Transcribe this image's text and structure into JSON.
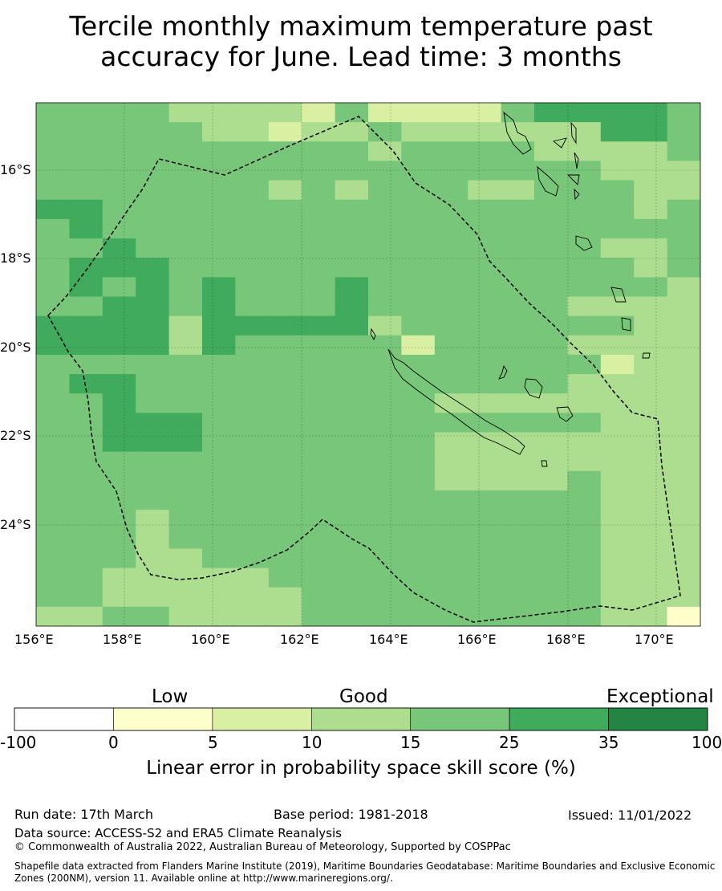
{
  "title_line1": "Tercile monthly maximum temperature past",
  "title_line2": "accuracy for June. Lead time: 3 months",
  "map": {
    "lat_labels": [
      "16°S",
      "18°S",
      "20°S",
      "22°S",
      "24°S"
    ],
    "lon_labels": [
      "156°E",
      "158°E",
      "160°E",
      "162°E",
      "164°E",
      "166°E",
      "168°E",
      "170°E"
    ],
    "colors": [
      "#ffffcc",
      "#d9f0a3",
      "#addd8e",
      "#78c679",
      "#41ab5d",
      "#238443"
    ],
    "grid_rows": [
      "33332222131111344443",
      "33333221223222222443",
      "33333333332333322223",
      "33333333333333333222",
      "33333332323332233322",
      "44333333333333333323",
      "34333333333333333333",
      "33433333333333333223",
      "34443333333333333323",
      "34343433343333333332",
      "33443433343333332222",
      "44442444442333333322",
      "44442433333133332222",
      "33333333333333333122",
      "34433333333333332222",
      "33433333333322222222",
      "33444333333333333222",
      "33444333333322222222",
      "33333333333322222222",
      "33333333333322223222",
      "33333333333333333222",
      "33323333333333333222",
      "33323333333333333222",
      "33322333333333333222",
      "33222223333333333222",
      "33222222333333333222",
      "22332222333333333220"
    ]
  },
  "colorbar": {
    "categories": [
      "Low",
      "Good",
      "Exceptional"
    ],
    "ticks": [
      "-100",
      "0",
      "5",
      "10",
      "15",
      "25",
      "35",
      "100"
    ],
    "colors": [
      "#ffffff",
      "#ffffcc",
      "#d9f0a3",
      "#addd8e",
      "#78c679",
      "#41ab5d",
      "#238443"
    ],
    "label": "Linear error in probability space skill score (%)"
  },
  "footer": {
    "run_date": "Run date: 17th March",
    "base_period": "Base period: 1981-2018",
    "issued": "Issued: 11/01/2022",
    "data_source": "Data source: ACCESS-S2 and ERA5 Climate Reanalysis",
    "copyright": "© Commonwealth of Australia 2022, Australian Bureau of Meteorology, Supported by COSPPac",
    "shapefile": "Shapefile data extracted from Flanders Marine Institute (2019), Maritime Boundaries Geodatabase: Maritime Boundaries and Exclusive Economic Zones (200NM), version 11. Available online at http://www.marineregions.org/."
  }
}
